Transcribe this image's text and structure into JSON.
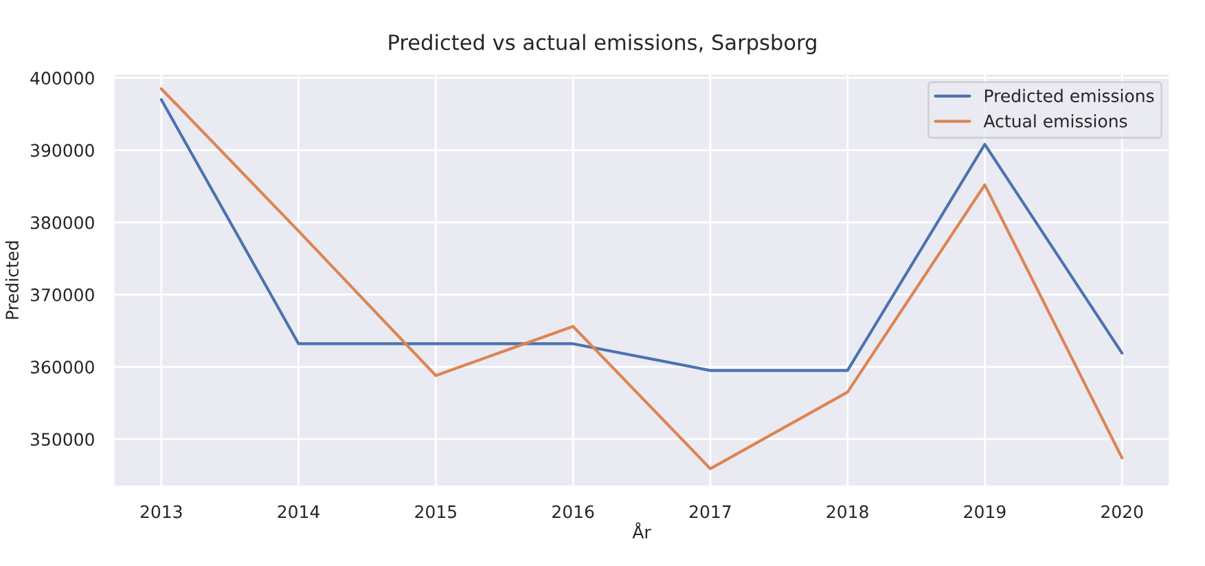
{
  "chart_data": {
    "type": "line",
    "title": "Predicted vs actual emissions, Sarpsborg",
    "xlabel": "År",
    "ylabel": "Predicted",
    "x": [
      2013,
      2014,
      2015,
      2016,
      2017,
      2018,
      2019,
      2020
    ],
    "series": [
      {
        "name": "Predicted emissions",
        "color": "#4c72b0",
        "values": [
          397000,
          363200,
          363200,
          363200,
          359500,
          359500,
          390800,
          361900
        ]
      },
      {
        "name": "Actual emissions",
        "color": "#dd8452",
        "values": [
          398500,
          378800,
          358800,
          365600,
          345900,
          356500,
          385200,
          347400
        ]
      }
    ],
    "xlim": [
      2012.65,
      2020.35
    ],
    "xticks": [
      2013,
      2014,
      2015,
      2016,
      2017,
      2018,
      2019,
      2020
    ],
    "ylim": [
      343400,
      400600
    ],
    "yticks": [
      350000,
      360000,
      370000,
      380000,
      390000,
      400000
    ],
    "grid": true,
    "legend": "top right"
  }
}
